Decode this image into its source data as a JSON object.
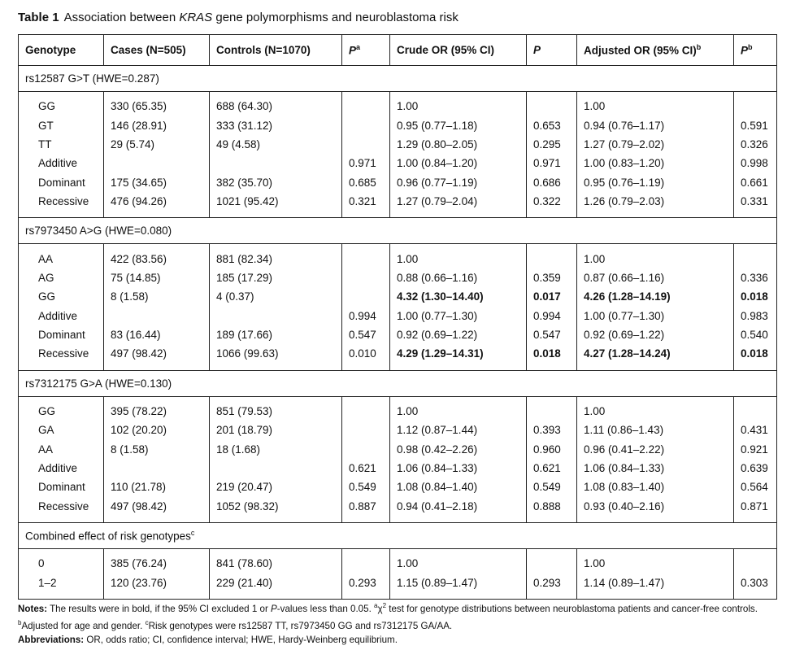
{
  "title": {
    "label": "Table 1",
    "segments": [
      {
        "text": "Association between "
      },
      {
        "text": "KRAS",
        "style": "italic"
      },
      {
        "text": " gene polymorphisms and neuroblastoma risk"
      }
    ]
  },
  "table": {
    "headers": [
      {
        "text": "Genotype"
      },
      {
        "text": "Cases (N=505)"
      },
      {
        "text": "Controls (N=1070)"
      },
      {
        "text": "P",
        "italic": true,
        "sup": "a"
      },
      {
        "text": "Crude OR (95% CI)"
      },
      {
        "text": "P",
        "italic": true
      },
      {
        "text": "Adjusted OR (95% CI)",
        "sup": "b"
      },
      {
        "text": "P",
        "italic": true,
        "sup": "b"
      }
    ],
    "sections": [
      {
        "title": "rs12587 G>T (HWE=0.287)",
        "rows": [
          [
            "GG",
            "330 (65.35)",
            "688 (64.30)",
            null,
            "1.00",
            null,
            "1.00",
            null
          ],
          [
            "GT",
            "146 (28.91)",
            "333 (31.12)",
            null,
            "0.95 (0.77–1.18)",
            "0.653",
            "0.94 (0.76–1.17)",
            "0.591"
          ],
          [
            "TT",
            "29 (5.74)",
            "49 (4.58)",
            null,
            "1.29 (0.80–2.05)",
            "0.295",
            "1.27 (0.79–2.02)",
            "0.326"
          ],
          [
            "Additive",
            null,
            null,
            "0.971",
            "1.00 (0.84–1.20)",
            "0.971",
            "1.00 (0.83–1.20)",
            "0.998"
          ],
          [
            "Dominant",
            "175 (34.65)",
            "382 (35.70)",
            "0.685",
            "0.96 (0.77–1.19)",
            "0.686",
            "0.95 (0.76–1.19)",
            "0.661"
          ],
          [
            "Recessive",
            "476 (94.26)",
            "1021 (95.42)",
            "0.321",
            "1.27 (0.79–2.04)",
            "0.322",
            "1.26 (0.79–2.03)",
            "0.331"
          ]
        ]
      },
      {
        "title": "rs7973450 A>G (HWE=0.080)",
        "rows": [
          [
            "AA",
            "422 (83.56)",
            "881 (82.34)",
            null,
            "1.00",
            null,
            "1.00",
            null
          ],
          [
            "AG",
            "75 (14.85)",
            "185 (17.29)",
            null,
            "0.88 (0.66–1.16)",
            "0.359",
            "0.87 (0.66–1.16)",
            "0.336"
          ],
          [
            "GG",
            "8 (1.58)",
            "4 (0.37)",
            null,
            {
              "text": "4.32 (1.30–14.40)",
              "bold": true
            },
            {
              "text": "0.017",
              "bold": true
            },
            {
              "text": "4.26 (1.28–14.19)",
              "bold": true
            },
            {
              "text": "0.018",
              "bold": true
            }
          ],
          [
            "Additive",
            null,
            null,
            "0.994",
            "1.00 (0.77–1.30)",
            "0.994",
            "1.00 (0.77–1.30)",
            "0.983"
          ],
          [
            "Dominant",
            "83 (16.44)",
            "189 (17.66)",
            "0.547",
            "0.92 (0.69–1.22)",
            "0.547",
            "0.92 (0.69–1.22)",
            "0.540"
          ],
          [
            "Recessive",
            "497 (98.42)",
            "1066 (99.63)",
            "0.010",
            {
              "text": "4.29 (1.29–14.31)",
              "bold": true
            },
            {
              "text": "0.018",
              "bold": true
            },
            {
              "text": "4.27 (1.28–14.24)",
              "bold": true
            },
            {
              "text": "0.018",
              "bold": true
            }
          ]
        ]
      },
      {
        "title": "rs7312175 G>A (HWE=0.130)",
        "rows": [
          [
            "GG",
            "395 (78.22)",
            "851 (79.53)",
            null,
            "1.00",
            null,
            "1.00",
            null
          ],
          [
            "GA",
            "102 (20.20)",
            "201 (18.79)",
            null,
            "1.12 (0.87–1.44)",
            "0.393",
            "1.11 (0.86–1.43)",
            "0.431"
          ],
          [
            "AA",
            "8 (1.58)",
            "18 (1.68)",
            null,
            "0.98 (0.42–2.26)",
            "0.960",
            "0.96 (0.41–2.22)",
            "0.921"
          ],
          [
            "Additive",
            null,
            null,
            "0.621",
            "1.06 (0.84–1.33)",
            "0.621",
            "1.06 (0.84–1.33)",
            "0.639"
          ],
          [
            "Dominant",
            "110 (21.78)",
            "219 (20.47)",
            "0.549",
            "1.08 (0.84–1.40)",
            "0.549",
            "1.08 (0.83–1.40)",
            "0.564"
          ],
          [
            "Recessive",
            "497 (98.42)",
            "1052 (98.32)",
            "0.887",
            "0.94 (0.41–2.18)",
            "0.888",
            "0.93 (0.40–2.16)",
            "0.871"
          ]
        ]
      },
      {
        "title": "Combined effect of risk genotypes",
        "sup": "c",
        "rows": [
          [
            "0",
            "385 (76.24)",
            "841 (78.60)",
            null,
            "1.00",
            null,
            "1.00",
            null
          ],
          [
            "1–2",
            "120 (23.76)",
            "229 (21.40)",
            "0.293",
            "1.15 (0.89–1.47)",
            "0.293",
            "1.14 (0.89–1.47)",
            "0.303"
          ]
        ]
      }
    ]
  },
  "notes": {
    "label": "Notes:",
    "segments": [
      {
        "text": " The results were in bold, if the 95% CI excluded 1 or "
      },
      {
        "text": "P",
        "style": "italic"
      },
      {
        "text": "-values less than 0.05. "
      },
      {
        "text": "a",
        "style": "sup"
      },
      {
        "text": "χ"
      },
      {
        "text": "2",
        "style": "sup"
      },
      {
        "text": " test for genotype distributions between neuroblastoma patients and cancer-free controls. "
      },
      {
        "text": "b",
        "style": "sup"
      },
      {
        "text": "Adjusted for age and gender. "
      },
      {
        "text": "c",
        "style": "sup"
      },
      {
        "text": "Risk genotypes were rs12587 TT, rs7973450 GG and rs7312175 GA/AA."
      }
    ]
  },
  "abbreviations": {
    "label": "Abbreviations:",
    "text": " OR, odds ratio; CI, confidence interval; HWE, Hardy-Weinberg equilibrium."
  }
}
